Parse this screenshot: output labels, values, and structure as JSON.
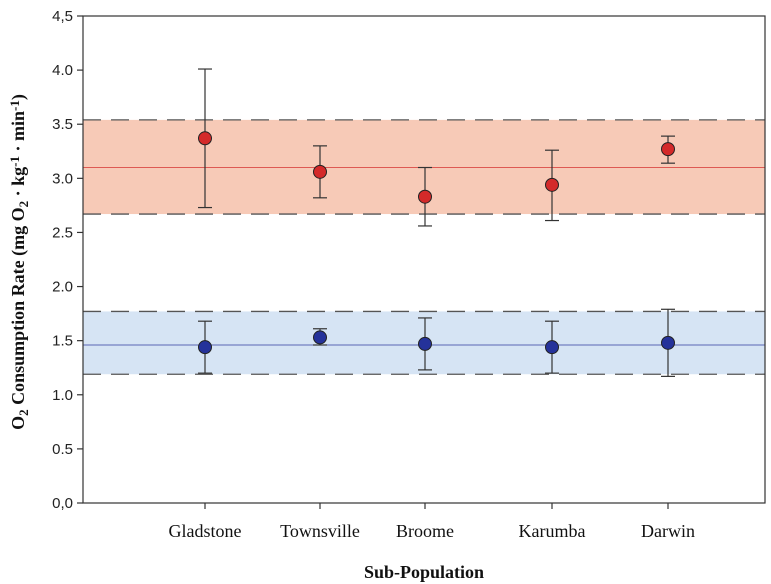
{
  "chart_data": {
    "type": "scatter",
    "xlabel": "Sub-Population",
    "ylabel_parts": [
      "O",
      "2",
      " Consumption Rate (mg O",
      "2",
      " · kg",
      "-1",
      " · min",
      "-1",
      ")"
    ],
    "categories": [
      "Gladstone",
      "Townsville",
      "Broome",
      "Karumba",
      "Darwin"
    ],
    "ylim": [
      0,
      4.5
    ],
    "yticks": [
      "0,0",
      "0.5",
      "1.0",
      "1.5",
      "2.0",
      "2.5",
      "3.0",
      "3.5",
      "4.0",
      "4,5"
    ],
    "ytick_values": [
      0,
      0.5,
      1.0,
      1.5,
      2.0,
      2.5,
      3.0,
      3.5,
      4.0,
      4.5
    ],
    "grid": false,
    "series": [
      {
        "color": "#d42a2a",
        "band_color": "#f6c1aa",
        "mean": 3.1,
        "band": [
          2.67,
          3.54
        ],
        "values": [
          3.37,
          3.06,
          2.83,
          2.94,
          3.27
        ],
        "err_low": [
          2.73,
          2.82,
          2.56,
          2.61,
          3.14
        ],
        "err_high": [
          4.01,
          3.3,
          3.1,
          3.26,
          3.39
        ]
      },
      {
        "color": "#25329a",
        "band_color": "#cfdff2",
        "mean": 1.46,
        "band": [
          1.19,
          1.77
        ],
        "values": [
          1.44,
          1.53,
          1.47,
          1.44,
          1.48
        ],
        "err_low": [
          1.2,
          1.46,
          1.23,
          1.2,
          1.17
        ],
        "err_high": [
          1.68,
          1.61,
          1.71,
          1.68,
          1.79
        ]
      }
    ]
  }
}
